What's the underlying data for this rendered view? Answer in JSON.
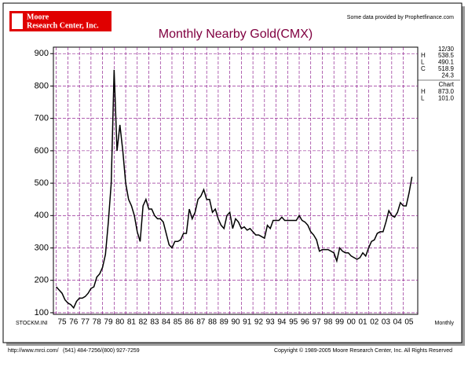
{
  "header": {
    "logo": [
      "Moore",
      "Research Center, Inc."
    ],
    "source": "Some data provided by Prophetfinance.com"
  },
  "side_panel": {
    "date": "12/30",
    "rows": [
      [
        "H",
        "538.5"
      ],
      [
        "L",
        "490.1"
      ],
      [
        "C",
        "518.9"
      ],
      [
        "",
        "24.3"
      ]
    ],
    "chart_label": "Chart",
    "chart_rows": [
      [
        "H",
        "873.0"
      ],
      [
        "L",
        "101.0"
      ]
    ]
  },
  "footer": {
    "file": "STOCKM.INI",
    "period": "Monthly",
    "url": "http://www.mrci.com/",
    "phone": "(541) 484-7256/(800) 927-7259",
    "copyright": "Copyright © 1989-2005 Moore Research Center, Inc. All Rights Reserved"
  },
  "chart_data": {
    "type": "line",
    "title": "Monthly Nearby Gold(CMX)",
    "x": [
      1975,
      1975.25,
      1975.5,
      1975.75,
      1976,
      1976.25,
      1976.5,
      1976.75,
      1977,
      1977.25,
      1977.5,
      1977.75,
      1978,
      1978.25,
      1978.5,
      1978.75,
      1979,
      1979.25,
      1979.5,
      1979.75,
      1980,
      1980.25,
      1980.5,
      1980.75,
      1981,
      1981.25,
      1981.5,
      1981.75,
      1982,
      1982.25,
      1982.5,
      1982.75,
      1983,
      1983.25,
      1983.5,
      1983.75,
      1984,
      1984.25,
      1984.5,
      1984.75,
      1985,
      1985.25,
      1985.5,
      1985.75,
      1986,
      1986.25,
      1986.5,
      1986.75,
      1987,
      1987.25,
      1987.5,
      1987.75,
      1988,
      1988.25,
      1988.5,
      1988.75,
      1989,
      1989.25,
      1989.5,
      1989.75,
      1990,
      1990.25,
      1990.5,
      1990.75,
      1991,
      1991.25,
      1991.5,
      1991.75,
      1992,
      1992.25,
      1992.5,
      1992.75,
      1993,
      1993.25,
      1993.5,
      1993.75,
      1994,
      1994.25,
      1994.5,
      1994.75,
      1995,
      1995.25,
      1995.5,
      1995.75,
      1996,
      1996.25,
      1996.5,
      1996.75,
      1997,
      1997.25,
      1997.5,
      1997.75,
      1998,
      1998.25,
      1998.5,
      1998.75,
      1999,
      1999.25,
      1999.5,
      1999.75,
      2000,
      2000.25,
      2000.5,
      2000.75,
      2001,
      2001.25,
      2001.5,
      2001.75,
      2002,
      2002.25,
      2002.5,
      2002.75,
      2003,
      2003.25,
      2003.5,
      2003.75,
      2004,
      2004.25,
      2004.5,
      2004.75,
      2005,
      2005.25,
      2005.5,
      2005.75
    ],
    "series": [
      {
        "name": "Gold",
        "color": "#000000",
        "values": [
          180,
          170,
          160,
          140,
          130,
          125,
          115,
          135,
          145,
          145,
          150,
          160,
          175,
          180,
          210,
          220,
          240,
          280,
          380,
          500,
          850,
          600,
          680,
          600,
          500,
          450,
          430,
          400,
          350,
          320,
          430,
          450,
          420,
          420,
          400,
          390,
          390,
          380,
          345,
          310,
          300,
          320,
          320,
          325,
          345,
          345,
          420,
          390,
          410,
          450,
          460,
          480,
          450,
          450,
          410,
          420,
          390,
          370,
          360,
          400,
          410,
          360,
          390,
          380,
          360,
          365,
          355,
          360,
          350,
          340,
          340,
          335,
          330,
          370,
          360,
          385,
          385,
          385,
          395,
          385,
          385,
          385,
          385,
          385,
          400,
          385,
          380,
          370,
          350,
          340,
          325,
          290,
          295,
          295,
          295,
          290,
          285,
          260,
          300,
          290,
          285,
          285,
          275,
          270,
          265,
          270,
          285,
          275,
          300,
          320,
          325,
          345,
          350,
          350,
          380,
          415,
          400,
          395,
          410,
          440,
          430,
          430,
          470,
          520
        ]
      }
    ],
    "xlim": [
      1974.75,
      2006.25
    ],
    "xticks": [
      {
        "value": 1975,
        "label": "75"
      },
      {
        "value": 1976,
        "label": "76"
      },
      {
        "value": 1977,
        "label": "77"
      },
      {
        "value": 1978,
        "label": "78"
      },
      {
        "value": 1979,
        "label": "79"
      },
      {
        "value": 1980,
        "label": "80"
      },
      {
        "value": 1981,
        "label": "81"
      },
      {
        "value": 1982,
        "label": "82"
      },
      {
        "value": 1983,
        "label": "83"
      },
      {
        "value": 1984,
        "label": "84"
      },
      {
        "value": 1985,
        "label": "85"
      },
      {
        "value": 1986,
        "label": "86"
      },
      {
        "value": 1987,
        "label": "87"
      },
      {
        "value": 1988,
        "label": "88"
      },
      {
        "value": 1989,
        "label": "89"
      },
      {
        "value": 1990,
        "label": "90"
      },
      {
        "value": 1991,
        "label": "91"
      },
      {
        "value": 1992,
        "label": "92"
      },
      {
        "value": 1993,
        "label": "93"
      },
      {
        "value": 1994,
        "label": "94"
      },
      {
        "value": 1995,
        "label": "95"
      },
      {
        "value": 1996,
        "label": "96"
      },
      {
        "value": 1997,
        "label": "97"
      },
      {
        "value": 1998,
        "label": "98"
      },
      {
        "value": 1999,
        "label": "99"
      },
      {
        "value": 2000,
        "label": "00"
      },
      {
        "value": 2001,
        "label": "01"
      },
      {
        "value": 2002,
        "label": "02"
      },
      {
        "value": 2003,
        "label": "03"
      },
      {
        "value": 2004,
        "label": "04"
      },
      {
        "value": 2005,
        "label": "05"
      }
    ],
    "ylim": [
      95,
      920
    ],
    "yticks": [
      100,
      200,
      300,
      400,
      500,
      600,
      700,
      800,
      900
    ],
    "grid": true,
    "grid_color": "#800080"
  }
}
